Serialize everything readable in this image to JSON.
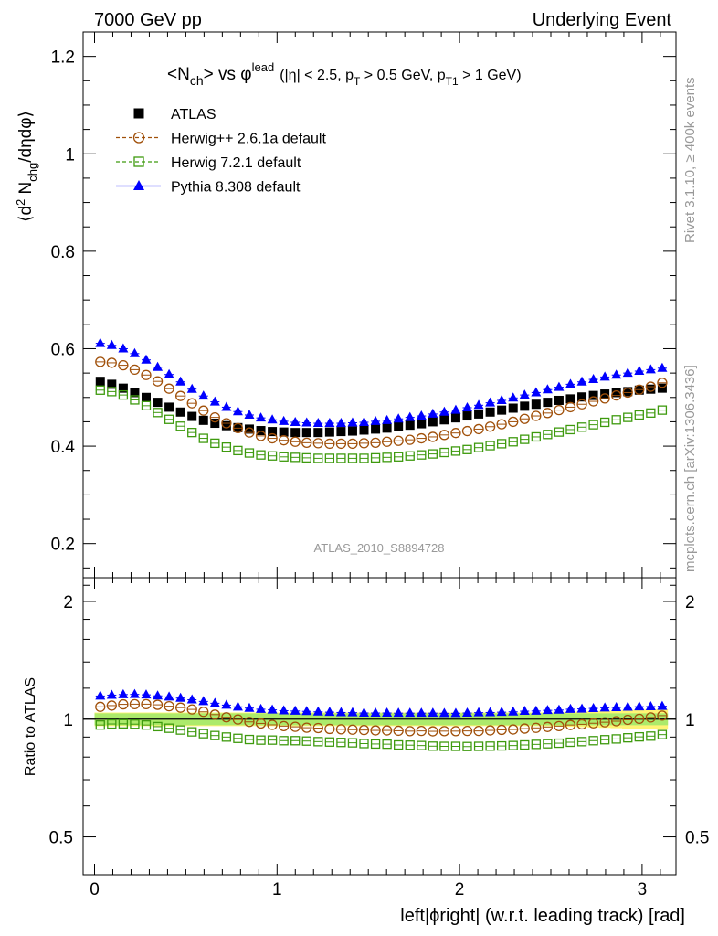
{
  "header": {
    "left": "7000 GeV pp",
    "right": "Underlying Event"
  },
  "side_text": {
    "rivet": "Rivet 3.1.10, ≥ 400k events",
    "mcplots": "mcplots.cern.ch [arXiv:1306.3436]"
  },
  "plot_title": {
    "base": "<N",
    "sub1": "ch",
    "mid": "> vs φ",
    "sup": "lead",
    "cuts": "(|η| < 2.5, p",
    "cut_sub1": "T",
    "cuts2": " > 0.5 GeV, p",
    "cut_sub2": "T1",
    "cuts3": " > 1 GeV)"
  },
  "analysis_tag": "ATLAS_2010_S8894728",
  "axes": {
    "ylabel_main": "⟨d² N_chg/dηdφ⟩",
    "ylabel_main_parts": {
      "a": "⟨d",
      "sup": "2",
      "b": " N",
      "sub": "chg",
      "c": "/dηdφ⟩"
    },
    "ylabel_ratio": "Ratio to ATLAS",
    "xlabel": "left|ϕright| (w.r.t. leading track) [rad]",
    "main_yticks": [
      "0.2",
      "0.4",
      "0.6",
      "0.8",
      "1",
      "1.2"
    ],
    "ratio_yticks": [
      "0.5",
      "1",
      "2"
    ],
    "xticks": [
      "0",
      "1",
      "2",
      "3"
    ]
  },
  "legend": [
    {
      "name": "ATLAS",
      "marker": "square-filled",
      "color": "#000000",
      "line": "none"
    },
    {
      "name": "Herwig++ 2.6.1a default",
      "marker": "circle-open",
      "color": "#a0500a",
      "line": "dashed"
    },
    {
      "name": "Herwig 7.2.1 default",
      "marker": "square-open",
      "color": "#3e9a0e",
      "line": "dashed"
    },
    {
      "name": "Pythia 8.308 default",
      "marker": "triangle-filled",
      "color": "#0000ff",
      "line": "solid"
    }
  ],
  "chart_data": {
    "type": "scatter",
    "main": {
      "xlim": [
        -0.05,
        3.19
      ],
      "ylim": [
        0.13,
        1.25
      ],
      "ylabel": "⟨d² N_chg/dηdφ⟩",
      "x": [
        0.0314,
        0.0942,
        0.1571,
        0.2199,
        0.2827,
        0.3456,
        0.4084,
        0.4712,
        0.5341,
        0.5969,
        0.6597,
        0.7226,
        0.7854,
        0.8482,
        0.9111,
        0.9739,
        1.0367,
        1.0996,
        1.1624,
        1.2252,
        1.2881,
        1.3509,
        1.4137,
        1.4765,
        1.5394,
        1.6022,
        1.665,
        1.7279,
        1.7907,
        1.8535,
        1.9164,
        1.9792,
        2.042,
        2.1049,
        2.1677,
        2.2305,
        2.2934,
        2.3562,
        2.419,
        2.4819,
        2.5447,
        2.6075,
        2.6704,
        2.7332,
        2.796,
        2.8588,
        2.9217,
        2.9845,
        3.0473,
        3.1102
      ],
      "series": [
        {
          "name": "ATLAS",
          "values": [
            0.533,
            0.527,
            0.519,
            0.51,
            0.5,
            0.49,
            0.48,
            0.47,
            0.461,
            0.453,
            0.447,
            0.442,
            0.438,
            0.435,
            0.432,
            0.43,
            0.429,
            0.428,
            0.428,
            0.428,
            0.429,
            0.43,
            0.431,
            0.433,
            0.435,
            0.437,
            0.44,
            0.443,
            0.446,
            0.45,
            0.454,
            0.458,
            0.462,
            0.466,
            0.47,
            0.474,
            0.478,
            0.482,
            0.486,
            0.49,
            0.494,
            0.497,
            0.501,
            0.504,
            0.507,
            0.51,
            0.512,
            0.515,
            0.517,
            0.519
          ]
        },
        {
          "name": "Herwig++ 2.6.1a default",
          "values": [
            0.573,
            0.571,
            0.566,
            0.557,
            0.546,
            0.533,
            0.518,
            0.503,
            0.488,
            0.473,
            0.459,
            0.447,
            0.437,
            0.428,
            0.421,
            0.416,
            0.412,
            0.409,
            0.407,
            0.406,
            0.405,
            0.405,
            0.405,
            0.406,
            0.407,
            0.409,
            0.411,
            0.413,
            0.416,
            0.419,
            0.423,
            0.427,
            0.431,
            0.435,
            0.44,
            0.445,
            0.45,
            0.456,
            0.462,
            0.468,
            0.474,
            0.48,
            0.486,
            0.492,
            0.498,
            0.504,
            0.51,
            0.516,
            0.522,
            0.53
          ]
        },
        {
          "name": "Herwig 7.2.1 default",
          "values": [
            0.515,
            0.512,
            0.505,
            0.495,
            0.483,
            0.469,
            0.455,
            0.441,
            0.428,
            0.416,
            0.406,
            0.398,
            0.391,
            0.386,
            0.382,
            0.38,
            0.378,
            0.377,
            0.376,
            0.375,
            0.375,
            0.375,
            0.375,
            0.375,
            0.376,
            0.377,
            0.378,
            0.38,
            0.382,
            0.384,
            0.387,
            0.39,
            0.393,
            0.397,
            0.401,
            0.405,
            0.409,
            0.414,
            0.419,
            0.424,
            0.429,
            0.434,
            0.439,
            0.444,
            0.449,
            0.454,
            0.459,
            0.464,
            0.468,
            0.474
          ]
        },
        {
          "name": "Pythia 8.308 default",
          "values": [
            0.611,
            0.607,
            0.6,
            0.59,
            0.577,
            0.562,
            0.547,
            0.532,
            0.517,
            0.503,
            0.491,
            0.48,
            0.471,
            0.464,
            0.458,
            0.454,
            0.451,
            0.449,
            0.448,
            0.447,
            0.447,
            0.447,
            0.448,
            0.449,
            0.451,
            0.453,
            0.456,
            0.459,
            0.462,
            0.466,
            0.47,
            0.474,
            0.479,
            0.484,
            0.489,
            0.494,
            0.499,
            0.505,
            0.51,
            0.516,
            0.521,
            0.527,
            0.532,
            0.537,
            0.542,
            0.546,
            0.55,
            0.554,
            0.557,
            0.56
          ]
        }
      ]
    },
    "ratio": {
      "ylim": [
        0.4,
        2.3
      ],
      "log_scale": true,
      "ylabel": "Ratio to ATLAS",
      "xlabel": "left|ϕright| (w.r.t. leading track) [rad]",
      "band_halfwidth": [
        0.04,
        0.04,
        0.04,
        0.04,
        0.04,
        0.04,
        0.04,
        0.04,
        0.04,
        0.04,
        0.04,
        0.04,
        0.04,
        0.04,
        0.04,
        0.04,
        0.04,
        0.04,
        0.04,
        0.04,
        0.04,
        0.04,
        0.04,
        0.04,
        0.04,
        0.04,
        0.04,
        0.04,
        0.04,
        0.04,
        0.04,
        0.04,
        0.04,
        0.04,
        0.04,
        0.04,
        0.04,
        0.04,
        0.04,
        0.04,
        0.042,
        0.044,
        0.046,
        0.048,
        0.05,
        0.052,
        0.054,
        0.056,
        0.058,
        0.06
      ],
      "series": [
        {
          "name": "Herwig++ 2.6.1a default",
          "values": [
            1.075,
            1.083,
            1.091,
            1.092,
            1.092,
            1.088,
            1.079,
            1.07,
            1.059,
            1.044,
            1.027,
            1.011,
            0.998,
            0.984,
            0.975,
            0.967,
            0.96,
            0.956,
            0.951,
            0.949,
            0.944,
            0.942,
            0.94,
            0.938,
            0.936,
            0.936,
            0.934,
            0.932,
            0.933,
            0.931,
            0.932,
            0.932,
            0.933,
            0.933,
            0.936,
            0.939,
            0.941,
            0.946,
            0.95,
            0.955,
            0.96,
            0.966,
            0.97,
            0.976,
            0.982,
            0.988,
            0.996,
            1.002,
            1.01,
            1.021
          ]
        },
        {
          "name": "Herwig 7.2.1 default",
          "values": [
            0.966,
            0.972,
            0.973,
            0.971,
            0.966,
            0.957,
            0.948,
            0.938,
            0.928,
            0.918,
            0.908,
            0.9,
            0.893,
            0.887,
            0.884,
            0.884,
            0.881,
            0.881,
            0.879,
            0.876,
            0.874,
            0.872,
            0.87,
            0.866,
            0.864,
            0.863,
            0.859,
            0.858,
            0.856,
            0.853,
            0.852,
            0.852,
            0.851,
            0.852,
            0.853,
            0.854,
            0.856,
            0.859,
            0.862,
            0.865,
            0.868,
            0.873,
            0.876,
            0.881,
            0.886,
            0.89,
            0.896,
            0.901,
            0.905,
            0.913
          ]
        },
        {
          "name": "Pythia 8.308 default",
          "values": [
            1.146,
            1.152,
            1.156,
            1.157,
            1.154,
            1.147,
            1.14,
            1.132,
            1.121,
            1.11,
            1.098,
            1.086,
            1.075,
            1.067,
            1.06,
            1.056,
            1.051,
            1.049,
            1.047,
            1.044,
            1.042,
            1.04,
            1.039,
            1.037,
            1.037,
            1.037,
            1.036,
            1.036,
            1.036,
            1.036,
            1.035,
            1.035,
            1.037,
            1.039,
            1.04,
            1.042,
            1.044,
            1.048,
            1.049,
            1.053,
            1.055,
            1.06,
            1.062,
            1.065,
            1.069,
            1.071,
            1.074,
            1.076,
            1.077,
            1.079
          ]
        }
      ]
    },
    "xlim": [
      -0.05,
      3.19
    ],
    "xticks": [
      0,
      1,
      2,
      3
    ],
    "grid": false,
    "legend_position": "top-left"
  }
}
